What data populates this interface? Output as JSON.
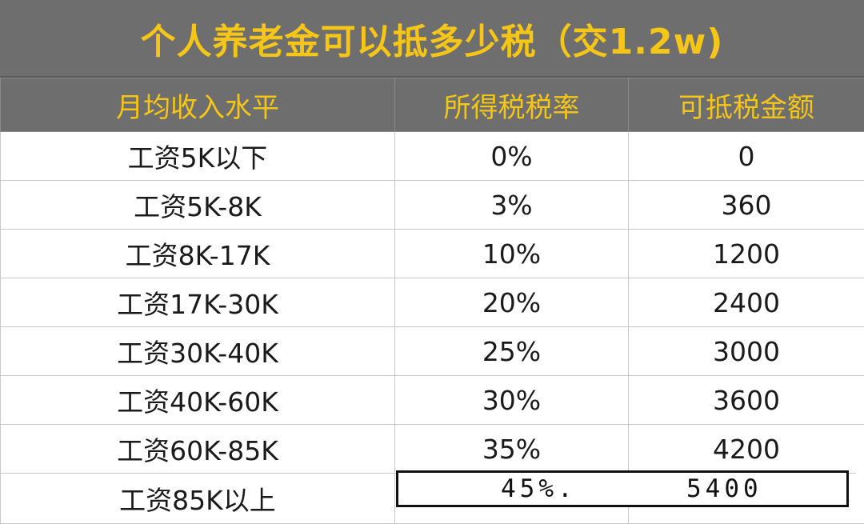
{
  "title": "个人养老金可以抵多少税（交1.2w)",
  "colors": {
    "header_bg": "#6e6e6e",
    "header_text": "#f5c518"
  },
  "table": {
    "headers": [
      "月均收入水平",
      "所得税税率",
      "可抵税金额"
    ],
    "rows": [
      [
        "工资5K以下",
        "0%",
        "0"
      ],
      [
        "工资5K-8K",
        "3%",
        "360"
      ],
      [
        "工资8K-17K",
        "10%",
        "1200"
      ],
      [
        "工资17K-30K",
        "20%",
        "2400"
      ],
      [
        "工资30K-40K",
        "25%",
        "3000"
      ],
      [
        "工资40K-60K",
        "30%",
        "3600"
      ],
      [
        "工资60K-85K",
        "35%",
        "4200"
      ],
      [
        "工资85K以上",
        "45%.",
        "5400"
      ]
    ]
  }
}
